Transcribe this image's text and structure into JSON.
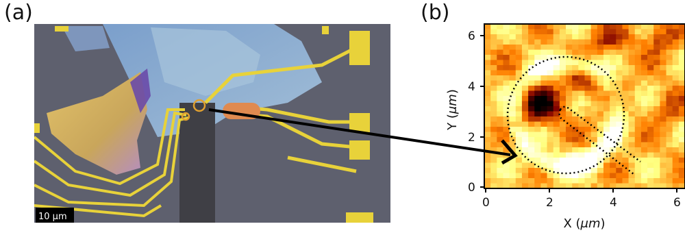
{
  "panels": {
    "a_label": "(a)",
    "b_label": "(b)"
  },
  "micrograph": {
    "scale_bar_text": "10 μm"
  },
  "map": {
    "xlabel_prefix": "X (",
    "xlabel_unit": "μm",
    "xlabel_suffix": ")",
    "ylabel_prefix": "Y (",
    "ylabel_unit": "μm",
    "ylabel_suffix": ")",
    "x_ticks": [
      "0",
      "2",
      "4",
      "6"
    ],
    "y_ticks": [
      "0",
      "2",
      "4",
      "6"
    ],
    "colormap": "afmhot"
  },
  "colors": {
    "gold_lead": "#e8d23a",
    "substrate": "#5c5e6e",
    "flake_blue": "#8fb3d8",
    "flake_yellow": "#d9c26a",
    "arrow": "#000000"
  }
}
